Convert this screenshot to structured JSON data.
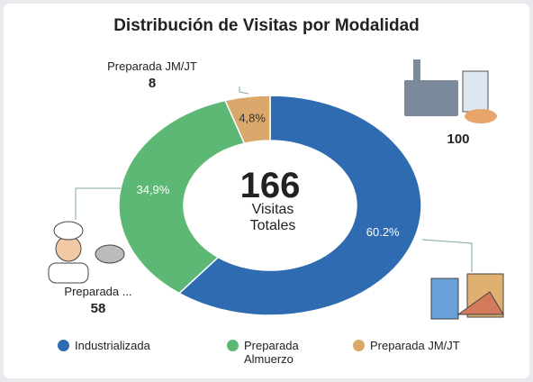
{
  "chart_data": {
    "type": "donut",
    "title": "Distribución de Visitas por Modalidad",
    "categories": [
      "Industrializada",
      "Preparada Almuerzo",
      "Preparada JM/JT"
    ],
    "values": [
      60.2,
      34.9,
      4.8
    ],
    "value_labels": [
      "60.2%",
      "34,9%",
      "4,8%"
    ],
    "colors": [
      "#2e6bb0",
      "#5cb874",
      "#d9a86a"
    ],
    "total": 166,
    "total_label": "Visitas Totales",
    "callouts": [
      {
        "count": 100
      },
      {
        "name": "Preparada ...",
        "count": 58
      },
      {
        "name": "Preparada JM/JT",
        "count": 8
      }
    ],
    "legend": "bottom"
  }
}
